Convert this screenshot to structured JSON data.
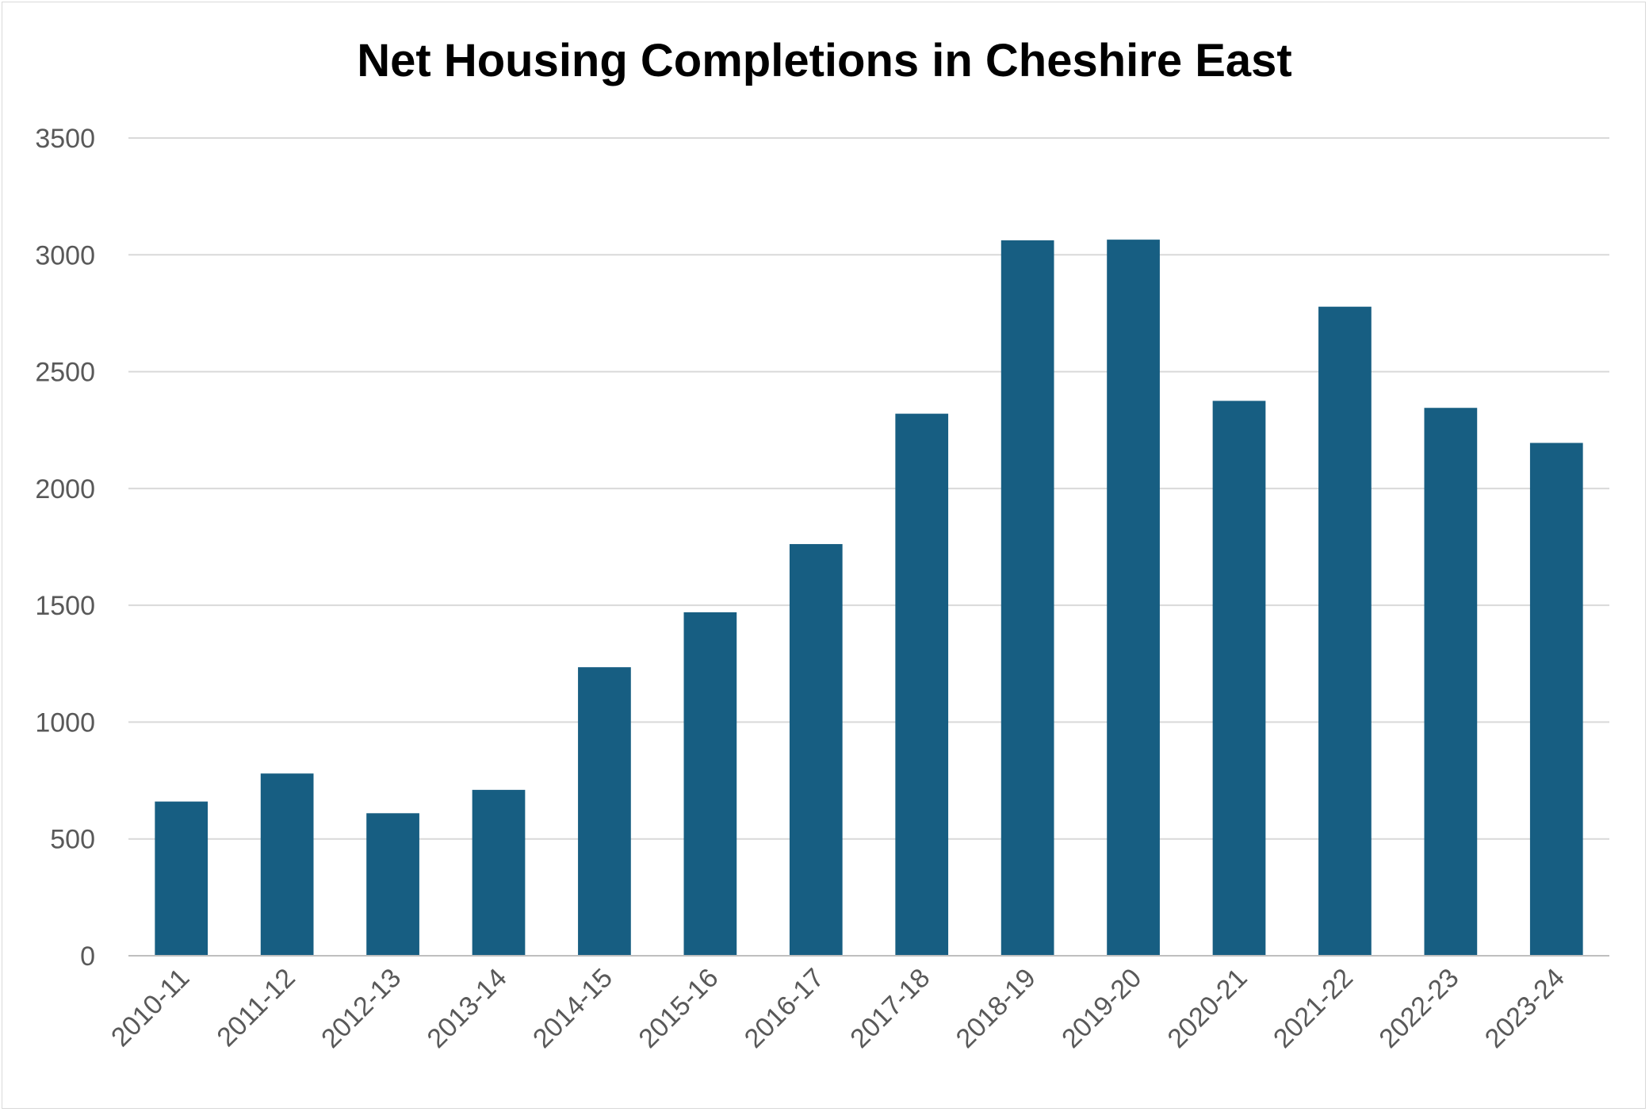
{
  "chart_data": {
    "type": "bar",
    "title": "Net Housing Completions in Cheshire East",
    "xlabel": "",
    "ylabel": "",
    "categories": [
      "2010-11",
      "2011-12",
      "2012-13",
      "2013-14",
      "2014-15",
      "2015-16",
      "2016-17",
      "2017-18",
      "2018-19",
      "2019-20",
      "2020-21",
      "2021-22",
      "2022-23",
      "2023-24"
    ],
    "values": [
      660,
      780,
      610,
      710,
      1235,
      1470,
      1762,
      2320,
      3062,
      3065,
      2375,
      2778,
      2345,
      2195
    ],
    "ylim": [
      0,
      3500
    ],
    "yticks": [
      "0",
      "500",
      "1000",
      "1500",
      "2000",
      "2500",
      "3000",
      "3500"
    ],
    "grid": true,
    "legend": "none",
    "colors": {
      "bar": "#175e82",
      "grid": "#d9d9d9",
      "axis": "#bfbfbf"
    }
  }
}
